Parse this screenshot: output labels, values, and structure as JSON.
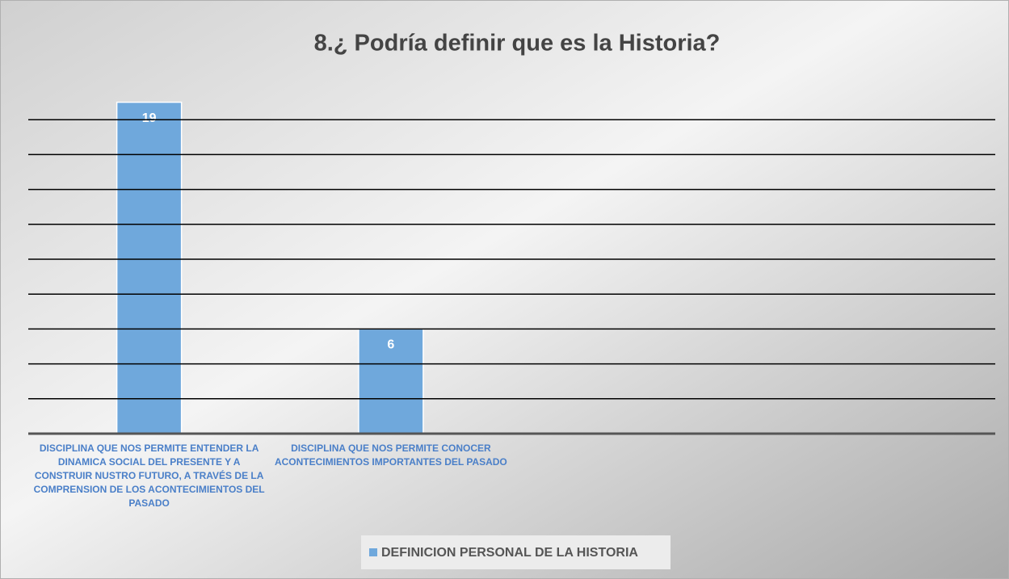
{
  "chart_data": {
    "type": "bar",
    "title": "8.¿ Podría definir que es la Historia?",
    "categories": [
      "DISCIPLINA QUE NOS PERMITE ENTENDER LA DINAMICA SOCIAL DEL PRESENTE Y A CONSTRUIR NUSTRO FUTURO, A TRAVÉS DE LA COMPRENSION DE LOS ACONTECIMIENTOS DEL PASADO",
      "DISCIPLINA QUE NOS PERMITE CONOCER ACONTECIMIENTOS IMPORTANTES DEL PASADO",
      null,
      null
    ],
    "series": [
      {
        "name": "DEFINICION PERSONAL DE LA HISTORIA",
        "color": "#6fa8dc",
        "values": [
          19,
          6,
          null,
          null
        ]
      }
    ],
    "ylim": [
      0,
      20
    ],
    "yticks": [
      0,
      2,
      4,
      6,
      8,
      10,
      12,
      14,
      16,
      18
    ],
    "grid": true,
    "legend": "bottom"
  }
}
